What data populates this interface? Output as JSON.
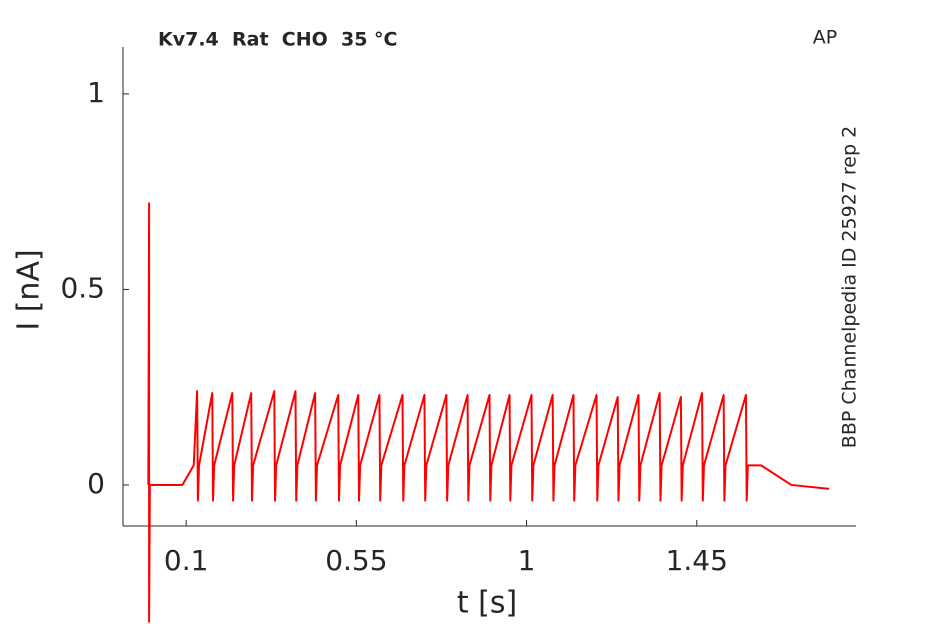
{
  "chart_data": {
    "type": "line",
    "title": "Kv7.4  Rat  CHO  35 °C",
    "corner_label": "AP",
    "side_label": "BBP Channelpedia ID 25927 rep 2",
    "x_label": "t [s]",
    "y_label": "I [nA]",
    "xlim": [
      -0.067,
      1.871
    ],
    "ylim": [
      -0.105,
      1.12
    ],
    "xticks": [
      0.1,
      0.55,
      1,
      1.45
    ],
    "yticks": [
      0,
      0.5,
      1
    ],
    "series": [
      {
        "color": "#ff0000",
        "x": [
          0,
          0.002,
          0.002,
          0.004,
          0.06,
          0.09,
          0.12,
          0.129,
          0.131,
          0.134,
          0.169,
          0.171,
          0.174,
          0.222,
          0.224,
          0.227,
          0.272,
          0.274,
          0.277,
          0.333,
          0.335,
          0.338,
          0.389,
          0.391,
          0.394,
          0.441,
          0.443,
          0.446,
          0.502,
          0.504,
          0.507,
          0.555,
          0.557,
          0.56,
          0.611,
          0.613,
          0.616,
          0.672,
          0.674,
          0.677,
          0.73,
          0.732,
          0.735,
          0.788,
          0.79,
          0.793,
          0.844,
          0.846,
          0.849,
          0.902,
          0.904,
          0.907,
          0.955,
          0.957,
          0.96,
          1.013,
          1.015,
          1.018,
          1.069,
          1.071,
          1.074,
          1.124,
          1.126,
          1.129,
          1.185,
          1.187,
          1.19,
          1.241,
          1.243,
          1.246,
          1.296,
          1.298,
          1.301,
          1.352,
          1.354,
          1.357,
          1.408,
          1.41,
          1.413,
          1.464,
          1.466,
          1.469,
          1.521,
          1.523,
          1.526,
          1.58,
          1.582,
          1.585,
          1.62,
          1.7,
          1.8
        ],
        "values": [
          0,
          0.72,
          -0.35,
          0,
          0,
          0,
          0.05,
          0.24,
          -0.04,
          0.05,
          0.235,
          -0.04,
          0.05,
          0.235,
          -0.04,
          0.05,
          0.235,
          -0.04,
          0.05,
          0.24,
          -0.04,
          0.05,
          0.24,
          -0.04,
          0.05,
          0.235,
          -0.04,
          0.05,
          0.23,
          -0.04,
          0.05,
          0.23,
          -0.04,
          0.05,
          0.23,
          -0.04,
          0.05,
          0.23,
          -0.04,
          0.05,
          0.23,
          -0.04,
          0.05,
          0.23,
          -0.04,
          0.05,
          0.23,
          -0.04,
          0.05,
          0.23,
          -0.04,
          0.05,
          0.23,
          -0.04,
          0.05,
          0.23,
          -0.04,
          0.05,
          0.23,
          -0.04,
          0.05,
          0.23,
          -0.04,
          0.05,
          0.23,
          -0.04,
          0.05,
          0.225,
          -0.04,
          0.05,
          0.23,
          -0.04,
          0.05,
          0.235,
          -0.04,
          0.05,
          0.225,
          -0.04,
          0.05,
          0.235,
          -0.04,
          0.05,
          0.23,
          -0.04,
          0.05,
          0.23,
          -0.04,
          0.05,
          0.05,
          0,
          -0.01
        ]
      }
    ]
  }
}
